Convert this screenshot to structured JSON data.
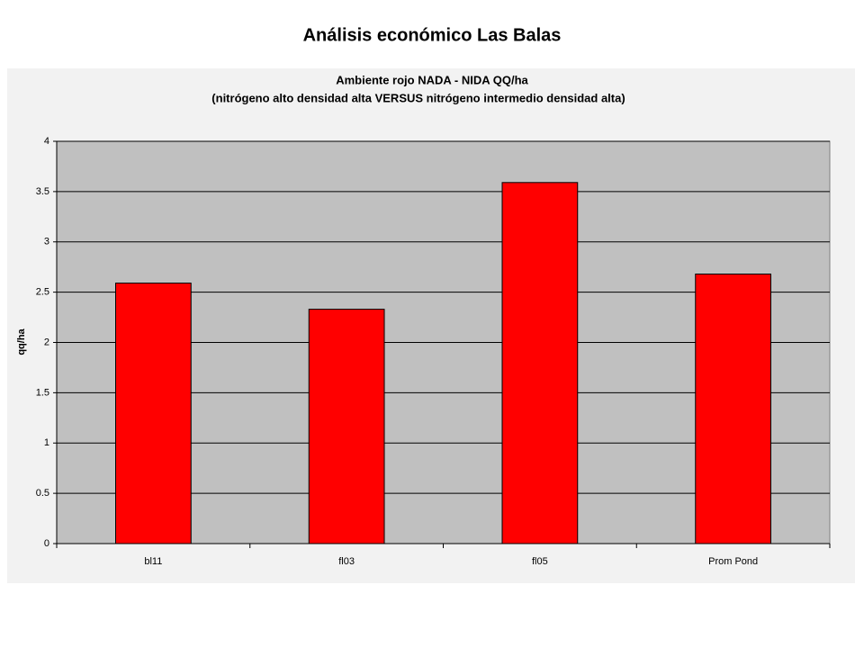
{
  "heading": "Análisis económico Las Balas",
  "chart_data": {
    "type": "bar",
    "title": "Ambiente rojo NADA - NIDA QQ/ha",
    "subtitle": "(nitrógeno alto densidad alta VERSUS nitrógeno intermedio densidad alta)",
    "y_label": "qq/ha",
    "categories": [
      "bl11",
      "fl03",
      "fl05",
      "Prom Pond"
    ],
    "values": [
      2.59,
      2.33,
      3.59,
      2.68
    ],
    "color": "#ff0000",
    "plot_background": "#c0c0c0",
    "ylim": [
      0,
      4
    ],
    "yticks": [
      0,
      0.5,
      1,
      1.5,
      2,
      2.5,
      3,
      3.5,
      4
    ],
    "grid": true
  }
}
